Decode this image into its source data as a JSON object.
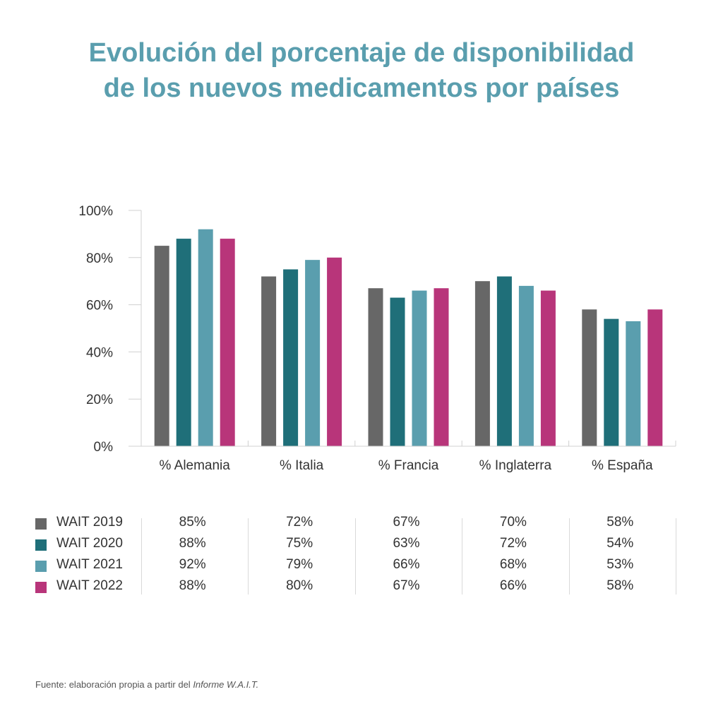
{
  "title_line1": "Evolución del porcentaje de disponibilidad",
  "title_line2": "de los nuevos medicamentos por países",
  "source_prefix": "Fuente: elaboración propia a partir del ",
  "source_italic": "Informe W.A.I.T.",
  "chart_data": {
    "type": "bar",
    "title": "Evolución del porcentaje de disponibilidad de los nuevos medicamentos por países",
    "categories": [
      "% Alemania",
      "% Italia",
      "% Francia",
      "% Inglaterra",
      "% España"
    ],
    "ylim": [
      0,
      100
    ],
    "yticks": [
      "0%",
      "20%",
      "40%",
      "60%",
      "80%",
      "100%"
    ],
    "ytick_values": [
      0,
      20,
      40,
      60,
      80,
      100
    ],
    "grid": false,
    "series": [
      {
        "name": "WAIT 2019",
        "color": "#676767",
        "values": [
          85,
          72,
          67,
          70,
          58
        ],
        "labels": [
          "85%",
          "72%",
          "67%",
          "70%",
          "58%"
        ]
      },
      {
        "name": "WAIT 2020",
        "color": "#1f6f79",
        "values": [
          88,
          75,
          63,
          72,
          54
        ],
        "labels": [
          "88%",
          "75%",
          "63%",
          "72%",
          "54%"
        ]
      },
      {
        "name": "WAIT 2021",
        "color": "#5a9eae",
        "values": [
          92,
          79,
          66,
          68,
          53
        ],
        "labels": [
          "92%",
          "79%",
          "66%",
          "68%",
          "53%"
        ]
      },
      {
        "name": "WAIT 2022",
        "color": "#b8357a",
        "values": [
          88,
          80,
          67,
          66,
          58
        ],
        "labels": [
          "88%",
          "80%",
          "67%",
          "66%",
          "58%"
        ]
      }
    ]
  }
}
